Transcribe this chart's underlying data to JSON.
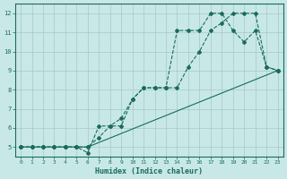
{
  "xlabel": "Humidex (Indice chaleur)",
  "background_color": "#c8e8e8",
  "grid_color": "#b0d0d0",
  "line_color": "#1a6b5a",
  "xlim": [
    -0.5,
    23.5
  ],
  "ylim": [
    4.5,
    12.5
  ],
  "xtick_labels": [
    "0",
    "1",
    "2",
    "3",
    "4",
    "5",
    "6",
    "7",
    "8",
    "9",
    "10",
    "11",
    "12",
    "13",
    "14",
    "15",
    "16",
    "17",
    "18",
    "19",
    "20",
    "21",
    "22",
    "23"
  ],
  "ytick_labels": [
    "5",
    "6",
    "7",
    "8",
    "9",
    "10",
    "11",
    "12"
  ],
  "ytick_vals": [
    5,
    6,
    7,
    8,
    9,
    10,
    11,
    12
  ],
  "line1_x": [
    0,
    1,
    2,
    3,
    4,
    5,
    6,
    7,
    8,
    9,
    10,
    11,
    12,
    13,
    14,
    15,
    16,
    17,
    18,
    19,
    20,
    21,
    22,
    23
  ],
  "line1_y": [
    5,
    5,
    5,
    5,
    5,
    5,
    4.7,
    6.1,
    6.1,
    6.1,
    7.5,
    8.1,
    8.1,
    8.1,
    11.1,
    11.1,
    11.1,
    12,
    12,
    11.1,
    10.5,
    11.1,
    9.2,
    9.0
  ],
  "line2_x": [
    0,
    1,
    2,
    3,
    4,
    5,
    6,
    7,
    8,
    9,
    10,
    11,
    12,
    13,
    14,
    15,
    16,
    17,
    18,
    19,
    20,
    21,
    22,
    23
  ],
  "line2_y": [
    5,
    5,
    5,
    5,
    5,
    5,
    5.0,
    5.5,
    6.1,
    6.5,
    7.5,
    8.1,
    8.1,
    8.1,
    8.1,
    9.2,
    10.0,
    11.1,
    11.5,
    12.0,
    12.0,
    12.0,
    9.2,
    9.0
  ],
  "line3_x": [
    0,
    1,
    2,
    3,
    4,
    5,
    6,
    23
  ],
  "line3_y": [
    5,
    5,
    5,
    5,
    5,
    5,
    5,
    9.0
  ]
}
